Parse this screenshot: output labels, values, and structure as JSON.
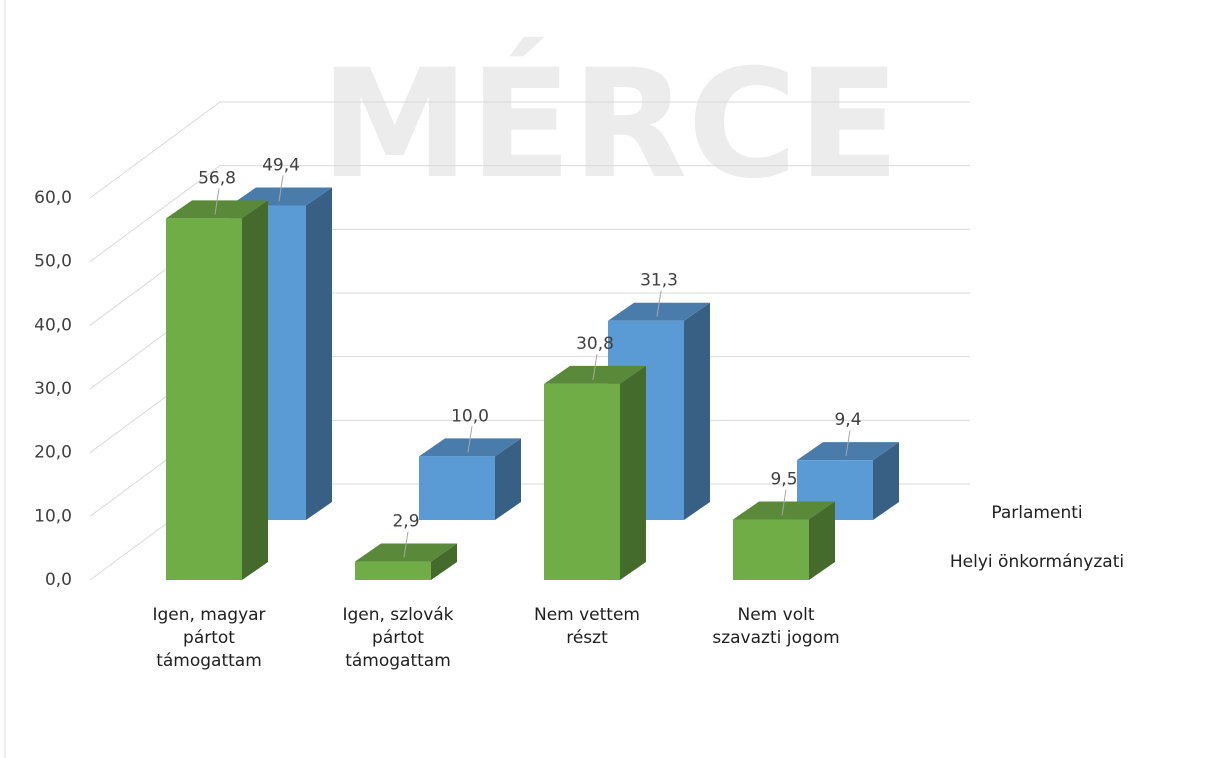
{
  "chart_data": {
    "type": "bar3d",
    "watermark": "MÉRCE",
    "categories": [
      "Igen, magyar pártot támogattam",
      "Igen, szlovák pártot támogattam",
      "Nem vettem részt",
      "Nem volt szavazti jogom"
    ],
    "series": [
      {
        "name": "Helyi önkormányzati",
        "color": "#70ad47",
        "values": [
          56.8,
          2.9,
          30.8,
          9.5
        ],
        "value_labels": [
          "56,8",
          "2,9",
          "30,8",
          "9,5"
        ]
      },
      {
        "name": "Parlamenti",
        "color": "#5b9bd5",
        "values": [
          49.4,
          10.0,
          31.3,
          9.4
        ],
        "value_labels": [
          "49,4",
          "10,0",
          "31,3",
          "9,4"
        ]
      }
    ],
    "ylim": [
      0,
      60
    ],
    "yticks": [
      {
        "value": 0,
        "label": "0,0"
      },
      {
        "value": 10,
        "label": "10,0"
      },
      {
        "value": 20,
        "label": "20,0"
      },
      {
        "value": 30,
        "label": "30,0"
      },
      {
        "value": 40,
        "label": "40,0"
      },
      {
        "value": 50,
        "label": "50,0"
      },
      {
        "value": 60,
        "label": "60,0"
      }
    ],
    "grid": true
  }
}
